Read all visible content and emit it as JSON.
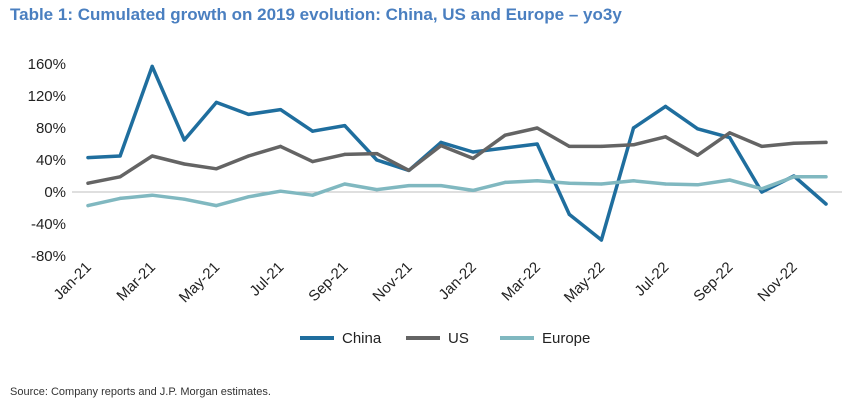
{
  "title": "Table 1: Cumulated growth on 2019 evolution: China, US and Europe – yo3y",
  "source": "Source: Company reports and J.P. Morgan estimates.",
  "chart_data": {
    "type": "line",
    "title": "Table 1: Cumulated growth on 2019 evolution: China, US and Europe – yo3y",
    "xlabel": "",
    "ylabel": "",
    "ylim": [
      -80,
      160
    ],
    "yticks": [
      -80,
      -40,
      0,
      40,
      80,
      120,
      160
    ],
    "ytick_labels": [
      "-80%",
      "-40%",
      "0%",
      "40%",
      "80%",
      "120%",
      "160%"
    ],
    "x": [
      "Jan-21",
      "Feb-21",
      "Mar-21",
      "Apr-21",
      "May-21",
      "Jun-21",
      "Jul-21",
      "Aug-21",
      "Sep-21",
      "Oct-21",
      "Nov-21",
      "Dec-21",
      "Jan-22",
      "Feb-22",
      "Mar-22",
      "Apr-22",
      "May-22",
      "Jun-22",
      "Jul-22",
      "Aug-22",
      "Sep-22",
      "Oct-22",
      "Nov-22",
      "Dec-22"
    ],
    "xtick_labels": [
      "Jan-21",
      "Mar-21",
      "May-21",
      "Jul-21",
      "Sep-21",
      "Nov-21",
      "Jan-22",
      "Mar-22",
      "May-22",
      "Jul-22",
      "Sep-22",
      "Nov-22"
    ],
    "grid": false,
    "legend_position": "bottom",
    "series": [
      {
        "name": "China",
        "color": "#1f6e9e",
        "values": [
          43,
          45,
          157,
          65,
          112,
          97,
          103,
          76,
          83,
          40,
          27,
          62,
          50,
          55,
          60,
          -28,
          -60,
          80,
          107,
          79,
          68,
          0,
          20,
          -15
        ]
      },
      {
        "name": "US",
        "color": "#646464",
        "values": [
          11,
          19,
          45,
          35,
          29,
          45,
          57,
          38,
          47,
          48,
          27,
          58,
          42,
          71,
          80,
          57,
          57,
          59,
          69,
          46,
          74,
          57,
          61,
          62
        ]
      },
      {
        "name": "Europe",
        "color": "#80b8c0",
        "values": [
          -17,
          -8,
          -4,
          -9,
          -17,
          -6,
          1,
          -4,
          10,
          3,
          8,
          8,
          2,
          12,
          14,
          11,
          10,
          14,
          10,
          9,
          15,
          4,
          19,
          19
        ]
      }
    ]
  }
}
